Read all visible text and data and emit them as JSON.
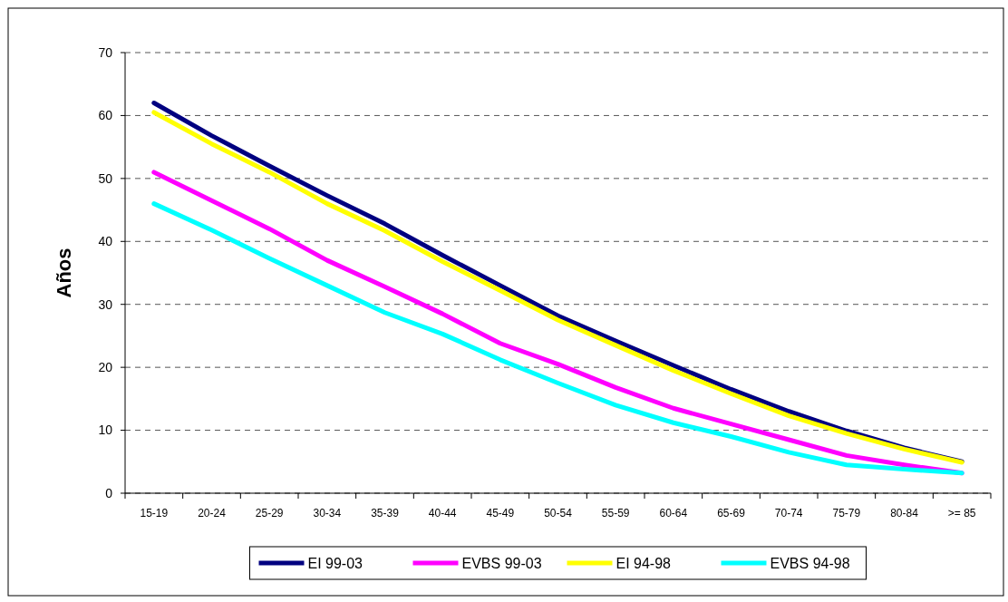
{
  "chart_data": {
    "type": "line",
    "ylabel": "Años",
    "categories": [
      "15-19",
      "20-24",
      "25-29",
      "30-34",
      "35-39",
      "40-44",
      "45-49",
      "50-54",
      "55-59",
      "60-64",
      "65-69",
      "70-74",
      "75-79",
      "80-84",
      ">= 85"
    ],
    "series": [
      {
        "name": "EI 99-03",
        "color": "#000080",
        "values": [
          62,
          56.8,
          52,
          47.3,
          42.8,
          37.8,
          33,
          28.2,
          24.2,
          20.3,
          16.5,
          13,
          9.9,
          7.2,
          5
        ]
      },
      {
        "name": "EVBS 99-03",
        "color": "#ff00ff",
        "values": [
          51,
          46.5,
          42,
          37,
          32.8,
          28.5,
          23.8,
          20.5,
          16.8,
          13.5,
          11,
          8.5,
          6,
          4.5,
          3.2
        ]
      },
      {
        "name": "EI 94-98",
        "color": "#ffff00",
        "values": [
          60.5,
          55.5,
          51,
          46,
          41.7,
          36.8,
          32.2,
          27.5,
          23.5,
          19.5,
          15.8,
          12.3,
          9.5,
          7,
          4.9
        ]
      },
      {
        "name": "EVBS 94-98",
        "color": "#00ffff",
        "values": [
          46,
          41.8,
          37.3,
          33,
          28.7,
          25.3,
          21.2,
          17.5,
          14,
          11.2,
          9,
          6.5,
          4.5,
          3.8,
          3.2
        ]
      }
    ],
    "ylim": [
      0,
      70
    ],
    "yticks": [
      0,
      10,
      20,
      30,
      40,
      50,
      60,
      70
    ],
    "grid": "y",
    "legend": "bottom",
    "marker": "none",
    "line_style": "solid"
  }
}
